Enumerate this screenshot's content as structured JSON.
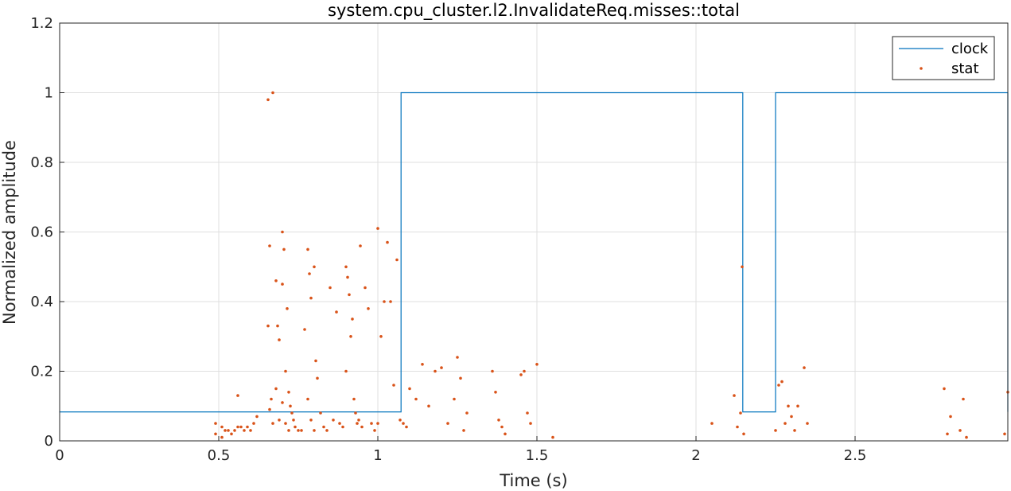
{
  "chart_data": {
    "type": "line",
    "title": "system.cpu_cluster.l2.InvalidateReq.misses::total",
    "xlabel": "Time (s)",
    "ylabel": "Normalized amplitude",
    "xlim": [
      0,
      2.98
    ],
    "ylim": [
      0,
      1.2
    ],
    "xticks": [
      0,
      0.5,
      1,
      1.5,
      2,
      2.5
    ],
    "xtick_labels": [
      "0",
      "0.5",
      "1",
      "1.5",
      "2",
      "2.5"
    ],
    "yticks": [
      0,
      0.2,
      0.4,
      0.6,
      0.8,
      1,
      1.2
    ],
    "ytick_labels": [
      "0",
      "0.2",
      "0.4",
      "0.6",
      "0.8",
      "1",
      "1.2"
    ],
    "grid": true,
    "legend_position": "top-right",
    "colors": {
      "clock": "#0072BD",
      "stat": "#D95319"
    },
    "series": [
      {
        "name": "clock",
        "style": "line",
        "x": [
          0,
          1.073,
          1.073,
          2.147,
          2.147,
          2.25,
          2.25,
          2.98,
          2.98
        ],
        "y": [
          0.0833,
          0.0833,
          1,
          1,
          0.0833,
          0.0833,
          1,
          1,
          0.0833
        ]
      },
      {
        "name": "stat",
        "style": "markers",
        "x": [
          0.49,
          0.49,
          0.51,
          0.51,
          0.52,
          0.53,
          0.54,
          0.55,
          0.56,
          0.56,
          0.57,
          0.58,
          0.59,
          0.6,
          0.61,
          0.62,
          0.655,
          0.655,
          0.66,
          0.66,
          0.665,
          0.67,
          0.67,
          0.68,
          0.68,
          0.685,
          0.69,
          0.69,
          0.7,
          0.7,
          0.7,
          0.705,
          0.71,
          0.71,
          0.715,
          0.72,
          0.72,
          0.725,
          0.73,
          0.735,
          0.74,
          0.75,
          0.76,
          0.77,
          0.78,
          0.78,
          0.785,
          0.79,
          0.79,
          0.8,
          0.8,
          0.805,
          0.81,
          0.82,
          0.83,
          0.84,
          0.85,
          0.86,
          0.87,
          0.88,
          0.89,
          0.9,
          0.9,
          0.905,
          0.91,
          0.915,
          0.92,
          0.925,
          0.93,
          0.935,
          0.94,
          0.945,
          0.95,
          0.96,
          0.97,
          0.98,
          0.99,
          1.0,
          1.0,
          1.01,
          1.02,
          1.03,
          1.04,
          1.05,
          1.06,
          1.07,
          1.08,
          1.09,
          1.1,
          1.12,
          1.14,
          1.16,
          1.18,
          1.2,
          1.22,
          1.24,
          1.25,
          1.26,
          1.27,
          1.28,
          1.36,
          1.37,
          1.38,
          1.39,
          1.4,
          1.45,
          1.46,
          1.47,
          1.48,
          1.5,
          1.55,
          2.05,
          2.12,
          2.13,
          2.14,
          2.145,
          2.15,
          2.25,
          2.26,
          2.27,
          2.28,
          2.29,
          2.3,
          2.31,
          2.32,
          2.34,
          2.35,
          2.78,
          2.79,
          2.8,
          2.83,
          2.84,
          2.85,
          2.97,
          2.98
        ],
        "y": [
          0.05,
          0.02,
          0.04,
          0.01,
          0.03,
          0.03,
          0.02,
          0.03,
          0.13,
          0.04,
          0.04,
          0.03,
          0.04,
          0.03,
          0.05,
          0.07,
          0.98,
          0.33,
          0.56,
          0.09,
          0.12,
          1.0,
          0.05,
          0.46,
          0.15,
          0.33,
          0.29,
          0.06,
          0.6,
          0.45,
          0.11,
          0.55,
          0.2,
          0.05,
          0.38,
          0.14,
          0.03,
          0.1,
          0.08,
          0.06,
          0.04,
          0.03,
          0.03,
          0.32,
          0.55,
          0.12,
          0.48,
          0.41,
          0.06,
          0.5,
          0.03,
          0.23,
          0.18,
          0.08,
          0.04,
          0.03,
          0.44,
          0.06,
          0.37,
          0.05,
          0.04,
          0.5,
          0.2,
          0.47,
          0.42,
          0.3,
          0.35,
          0.12,
          0.08,
          0.05,
          0.06,
          0.56,
          0.04,
          0.44,
          0.38,
          0.05,
          0.03,
          0.61,
          0.05,
          0.3,
          0.4,
          0.57,
          0.4,
          0.16,
          0.52,
          0.06,
          0.05,
          0.04,
          0.15,
          0.12,
          0.22,
          0.1,
          0.2,
          0.21,
          0.05,
          0.12,
          0.24,
          0.18,
          0.03,
          0.08,
          0.2,
          0.14,
          0.06,
          0.04,
          0.02,
          0.19,
          0.2,
          0.08,
          0.05,
          0.22,
          0.01,
          0.05,
          0.13,
          0.04,
          0.08,
          0.5,
          0.02,
          0.03,
          0.16,
          0.17,
          0.05,
          0.1,
          0.07,
          0.03,
          0.1,
          0.21,
          0.05,
          0.15,
          0.02,
          0.07,
          0.03,
          0.12,
          0.01,
          0.02,
          0.14
        ]
      }
    ]
  }
}
